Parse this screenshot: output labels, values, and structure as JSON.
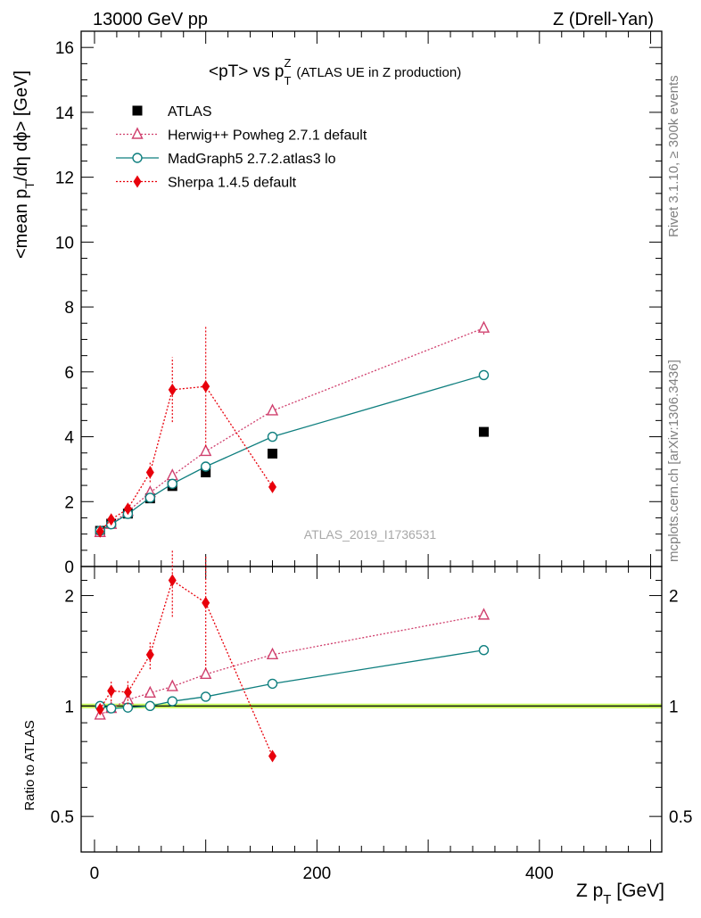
{
  "header": {
    "left": "13000 GeV pp",
    "right": "Z (Drell-Yan)"
  },
  "side_labels": {
    "rivet": "Rivet 3.1.10, ≥ 300k events",
    "mcplots": "mcplots.cern.ch [arXiv:1306.3436]"
  },
  "watermark": "ATLAS_2019_I1736531",
  "chart_data": [
    {
      "type": "line",
      "panel": "main",
      "title_main": "<pT> vs p",
      "title_sub": "T",
      "title_sup": "Z",
      "title_note": "(ATLAS UE in Z production)",
      "ylabel_main": "<mean p",
      "ylabel_sub": "T",
      "ylabel_rest": "/dη dϕ> [GeV]",
      "xlim": [
        -12,
        510
      ],
      "ylim": [
        0,
        16.5
      ],
      "x_ticks": [
        0,
        200,
        400
      ],
      "y_ticks": [
        0,
        2,
        4,
        6,
        8,
        10,
        12,
        14,
        16
      ],
      "legend_position": "top-left",
      "series": [
        {
          "name": "ATLAS",
          "style": "data",
          "color": "#000000",
          "marker": "square",
          "points": [
            {
              "x": 5,
              "y": 1.1
            },
            {
              "x": 15,
              "y": 1.32
            },
            {
              "x": 30,
              "y": 1.63
            },
            {
              "x": 50,
              "y": 2.1
            },
            {
              "x": 70,
              "y": 2.48
            },
            {
              "x": 100,
              "y": 2.9
            },
            {
              "x": 160,
              "y": 3.48
            },
            {
              "x": 350,
              "y": 4.15
            }
          ]
        },
        {
          "name": "Herwig++ Powheg 2.7.1 default",
          "style": "dotted",
          "color": "#d0406e",
          "marker": "triangle",
          "points": [
            {
              "x": 5,
              "y": 1.05
            },
            {
              "x": 15,
              "y": 1.3
            },
            {
              "x": 30,
              "y": 1.7
            },
            {
              "x": 50,
              "y": 2.28
            },
            {
              "x": 70,
              "y": 2.8
            },
            {
              "x": 100,
              "y": 3.55
            },
            {
              "x": 160,
              "y": 4.8
            },
            {
              "x": 350,
              "y": 7.35,
              "err": 0.2
            }
          ]
        },
        {
          "name": "MadGraph5 2.7.2.atlas3 lo",
          "style": "solid",
          "color": "#0f7f7f",
          "marker": "circle",
          "points": [
            {
              "x": 5,
              "y": 1.1
            },
            {
              "x": 15,
              "y": 1.3
            },
            {
              "x": 30,
              "y": 1.62
            },
            {
              "x": 50,
              "y": 2.12
            },
            {
              "x": 70,
              "y": 2.55
            },
            {
              "x": 100,
              "y": 3.08
            },
            {
              "x": 160,
              "y": 4.0
            },
            {
              "x": 350,
              "y": 5.9,
              "err": 0.15
            }
          ]
        },
        {
          "name": "Sherpa 1.4.5 default",
          "style": "dotted",
          "color": "#e8000b",
          "marker": "diamond",
          "points": [
            {
              "x": 5,
              "y": 1.08,
              "err": 0.08
            },
            {
              "x": 15,
              "y": 1.45,
              "err": 0.12
            },
            {
              "x": 30,
              "y": 1.78,
              "err": 0.15
            },
            {
              "x": 50,
              "y": 2.9,
              "err": 0.3
            },
            {
              "x": 70,
              "y": 5.45,
              "err": 1.0
            },
            {
              "x": 100,
              "y": 5.55,
              "err": 1.85
            },
            {
              "x": 160,
              "y": 2.45
            }
          ]
        }
      ]
    },
    {
      "type": "line",
      "panel": "ratio",
      "ylabel": "Ratio to ATLAS",
      "xlabel_main": "Z p",
      "xlabel_sub": "T",
      "xlabel_rest": " [GeV]",
      "xlim": [
        -12,
        510
      ],
      "ylim": [
        0.4,
        2.4
      ],
      "y_scale": "log",
      "y_ticks": [
        0.5,
        1,
        2
      ],
      "x_ticks": [
        0,
        200,
        400
      ],
      "band": {
        "center": 1.0,
        "low": 0.985,
        "high": 1.015,
        "color": "#ccff66"
      },
      "series": [
        {
          "name": "Herwig++ Powheg 2.7.1 default",
          "style": "dotted",
          "color": "#d0406e",
          "marker": "triangle",
          "points": [
            {
              "x": 5,
              "y": 0.945
            },
            {
              "x": 15,
              "y": 0.985
            },
            {
              "x": 30,
              "y": 1.04
            },
            {
              "x": 50,
              "y": 1.085
            },
            {
              "x": 70,
              "y": 1.13
            },
            {
              "x": 100,
              "y": 1.22
            },
            {
              "x": 160,
              "y": 1.38
            },
            {
              "x": 350,
              "y": 1.77
            }
          ]
        },
        {
          "name": "MadGraph5 2.7.2.atlas3 lo",
          "style": "solid",
          "color": "#0f7f7f",
          "marker": "circle",
          "points": [
            {
              "x": 5,
              "y": 1.0
            },
            {
              "x": 15,
              "y": 0.985
            },
            {
              "x": 30,
              "y": 0.99
            },
            {
              "x": 50,
              "y": 1.0
            },
            {
              "x": 70,
              "y": 1.03
            },
            {
              "x": 100,
              "y": 1.06
            },
            {
              "x": 160,
              "y": 1.15
            },
            {
              "x": 350,
              "y": 1.42
            }
          ]
        },
        {
          "name": "Sherpa 1.4.5 default",
          "style": "dotted",
          "color": "#e8000b",
          "marker": "diamond",
          "points": [
            {
              "x": 5,
              "y": 0.98,
              "err": 0.03
            },
            {
              "x": 15,
              "y": 1.1,
              "err": 0.07
            },
            {
              "x": 30,
              "y": 1.09,
              "err": 0.08
            },
            {
              "x": 50,
              "y": 1.38,
              "err": 0.12
            },
            {
              "x": 70,
              "y": 2.2,
              "err": 0.45
            },
            {
              "x": 100,
              "y": 1.91,
              "err": 0.65
            },
            {
              "x": 160,
              "y": 0.73
            }
          ]
        }
      ]
    }
  ]
}
